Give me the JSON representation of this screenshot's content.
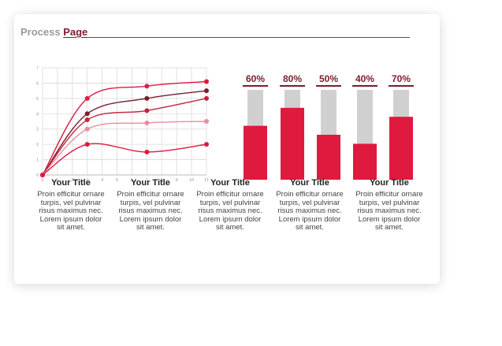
{
  "header": {
    "title_prefix": "Process ",
    "title_accent": "Page"
  },
  "colors": {
    "dark": "#7a1e2c",
    "red": "#e0193f",
    "pink": "#ee8a9e",
    "mid": "#c2243f",
    "gray": "#d0d0d0",
    "grid": "#d9d9d9"
  },
  "chart_data": [
    {
      "type": "line",
      "x": [
        0,
        1,
        2,
        3,
        4,
        5,
        6,
        7,
        8,
        9,
        10,
        11
      ],
      "xlim": [
        0,
        11
      ],
      "ylim": [
        0,
        7
      ],
      "x_ticks": [
        "0",
        "1",
        "2",
        "3",
        "4",
        "5",
        "6",
        "7",
        "8",
        "9",
        "10",
        "11"
      ],
      "y_ticks": [
        "0",
        "1",
        "2",
        "3",
        "4",
        "5",
        "6",
        "7"
      ],
      "grid": true,
      "series": [
        {
          "color": "#e0193f",
          "points": [
            [
              0,
              0
            ],
            [
              3,
              5
            ],
            [
              7,
              5.8
            ],
            [
              11,
              6.1
            ]
          ]
        },
        {
          "color": "#7a1e2c",
          "points": [
            [
              0,
              0
            ],
            [
              3,
              4
            ],
            [
              7,
              5
            ],
            [
              11,
              5.5
            ]
          ]
        },
        {
          "color": "#c2243f",
          "points": [
            [
              0,
              0
            ],
            [
              3,
              3.6
            ],
            [
              7,
              4.2
            ],
            [
              11,
              5
            ]
          ]
        },
        {
          "color": "#ee8a9e",
          "points": [
            [
              0,
              0
            ],
            [
              3,
              3
            ],
            [
              7,
              3.4
            ],
            [
              11,
              3.5
            ]
          ]
        },
        {
          "color": "#e0193f",
          "points": [
            [
              0,
              0
            ],
            [
              3,
              2
            ],
            [
              7,
              1.5
            ],
            [
              11,
              2
            ]
          ]
        }
      ]
    },
    {
      "type": "bar",
      "categories": [
        "60%",
        "80%",
        "50%",
        "40%",
        "70%"
      ],
      "values": [
        60,
        80,
        50,
        40,
        70
      ],
      "ylim": [
        0,
        100
      ]
    }
  ],
  "captions": [
    {
      "title": "Your Title",
      "text": [
        "Proin efficitur ornare",
        "turpis, vel pulvinar",
        "risus maximus nec.",
        "Lorem ipsum dolor",
        "sit amet."
      ]
    },
    {
      "title": "Your Title",
      "text": [
        "Proin efficitur ornare",
        "turpis, vel pulvinar",
        "risus maximus nec.",
        "Lorem ipsum dolor",
        "sit amet."
      ]
    },
    {
      "title": "Your Title",
      "text": [
        "Proin efficitur ornare",
        "turpis, vel pulvinar",
        "risus maximus nec.",
        "Lorem ipsum dolor",
        "sit amet."
      ]
    },
    {
      "title": "Your Title",
      "text": [
        "Proin efficitur ornare",
        "turpis, vel pulvinar",
        "risus maximus nec.",
        "Lorem ipsum dolor",
        "sit amet."
      ]
    },
    {
      "title": "Your Title",
      "text": [
        "Proin efficitur ornare",
        "turpis, vel pulvinar",
        "risus maximus nec.",
        "Lorem ipsum dolor",
        "sit amet."
      ]
    }
  ]
}
